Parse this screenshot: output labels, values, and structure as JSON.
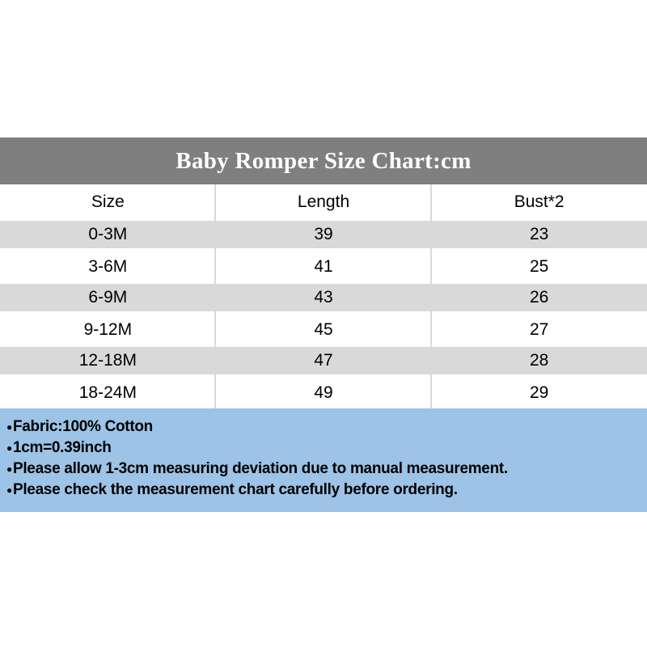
{
  "header": {
    "title": "Baby Romper Size Chart:cm"
  },
  "table": {
    "columns": [
      "Size",
      "Length",
      "Bust*2"
    ],
    "rows": [
      {
        "size": "0-3M",
        "length": "39",
        "bust": "23"
      },
      {
        "size": "3-6M",
        "length": "41",
        "bust": "25"
      },
      {
        "size": "6-9M",
        "length": "43",
        "bust": "26"
      },
      {
        "size": "9-12M",
        "length": "45",
        "bust": "27"
      },
      {
        "size": "12-18M",
        "length": "47",
        "bust": "28"
      },
      {
        "size": "18-24M",
        "length": "49",
        "bust": "29"
      }
    ]
  },
  "notes": {
    "bullet": "●",
    "lines": [
      "Fabric:100% Cotton",
      "1cm=0.39inch",
      "Please allow 1-3cm measuring deviation due to manual measurement.",
      "Please check the measurement chart carefully before ordering."
    ]
  },
  "chart_data": {
    "type": "table",
    "title": "Baby Romper Size Chart:cm",
    "unit": "cm",
    "columns": [
      "Size",
      "Length",
      "Bust*2"
    ],
    "rows": [
      [
        "0-3M",
        39,
        23
      ],
      [
        "3-6M",
        41,
        25
      ],
      [
        "6-9M",
        43,
        26
      ],
      [
        "9-12M",
        45,
        27
      ],
      [
        "12-18M",
        47,
        28
      ],
      [
        "18-24M",
        49,
        29
      ]
    ]
  },
  "colors": {
    "header_bg": "#7f7f7f",
    "row_alt_bg": "#d9d9d9",
    "separator": "#d9d9d9",
    "notes_bg": "#9dc3e6",
    "title_text": "#ffffff",
    "body_text": "#000000"
  }
}
